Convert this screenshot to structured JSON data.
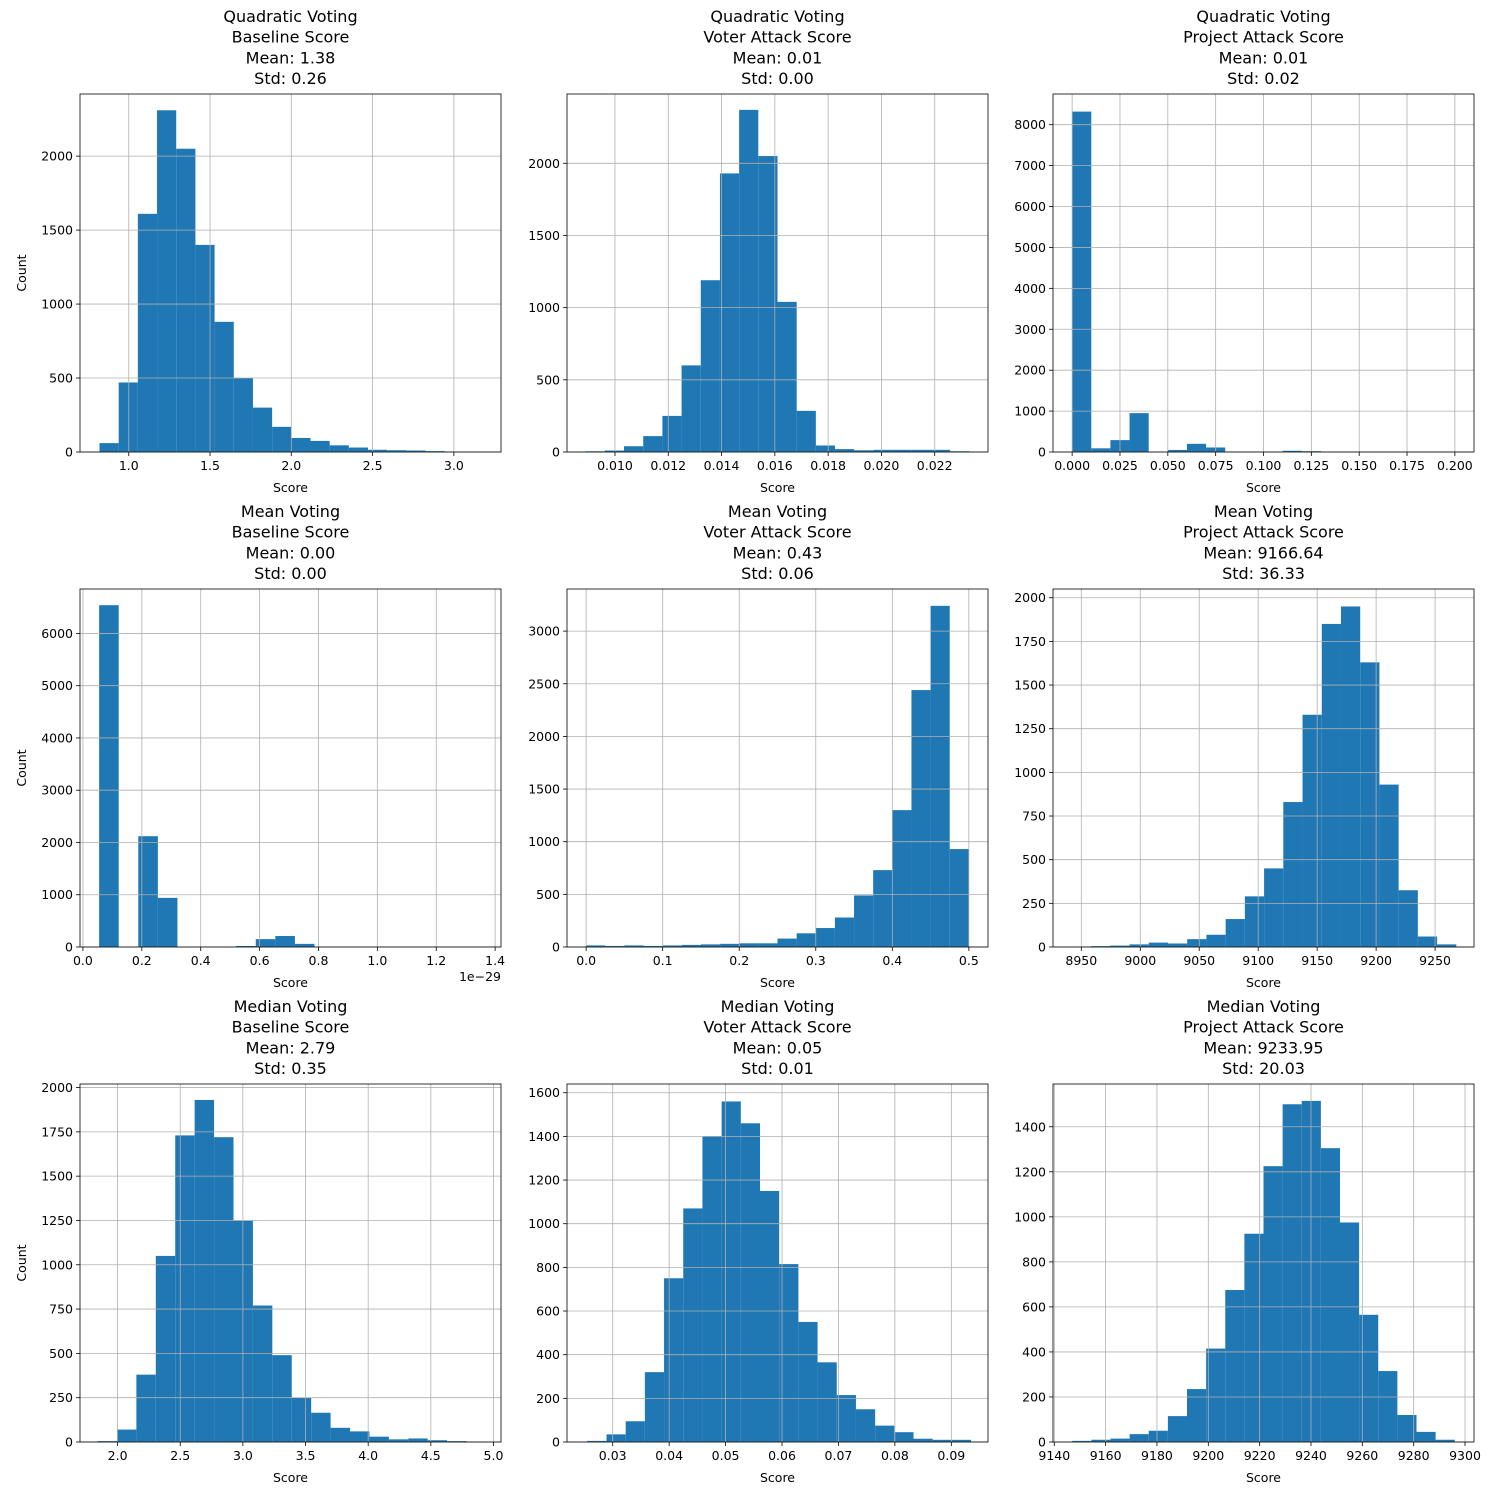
{
  "chart_data": [
    {
      "type": "bar",
      "title_lines": [
        "Quadratic Voting",
        "Baseline Score",
        "Mean: 1.38",
        "Std: 0.26"
      ],
      "xlabel": "Score",
      "ylabel": "Count",
      "xlim": [
        0.7,
        3.29
      ],
      "ylim": [
        0,
        2420
      ],
      "xticks": [
        1.0,
        1.5,
        2.0,
        2.5,
        3.0
      ],
      "xtick_labels": [
        "1.0",
        "1.5",
        "2.0",
        "2.5",
        "3.0"
      ],
      "yticks": [
        0,
        500,
        1000,
        1500,
        2000
      ],
      "ytick_labels": [
        "0",
        "500",
        "1000",
        "1500",
        "2000"
      ],
      "x_exponent_label": "",
      "bin_edges": [
        0.82,
        0.938,
        1.056,
        1.174,
        1.292,
        1.41,
        1.528,
        1.646,
        1.764,
        1.882,
        2.0,
        2.118,
        2.236,
        2.354,
        2.472,
        2.59,
        2.708,
        2.826,
        2.944,
        3.062,
        3.18
      ],
      "values": [
        60,
        470,
        1610,
        2310,
        2050,
        1400,
        880,
        500,
        300,
        170,
        95,
        75,
        45,
        30,
        15,
        12,
        10,
        6,
        3,
        2
      ]
    },
    {
      "type": "bar",
      "title_lines": [
        "Quadratic Voting",
        "Voter Attack Score",
        "Mean: 0.01",
        "Std: 0.00"
      ],
      "xlabel": "Score",
      "ylabel": "",
      "xlim": [
        0.0082,
        0.024
      ],
      "ylim": [
        0,
        2480
      ],
      "xticks": [
        0.01,
        0.012,
        0.014,
        0.016,
        0.018,
        0.02,
        0.022
      ],
      "xtick_labels": [
        "0.010",
        "0.012",
        "0.014",
        "0.016",
        "0.018",
        "0.020",
        "0.022"
      ],
      "yticks": [
        0,
        500,
        1000,
        1500,
        2000
      ],
      "ytick_labels": [
        "0",
        "500",
        "1000",
        "1500",
        "2000"
      ],
      "x_exponent_label": "",
      "bin_edges": [
        0.0089,
        0.00962,
        0.01034,
        0.01106,
        0.01178,
        0.0125,
        0.01322,
        0.01394,
        0.01466,
        0.01538,
        0.0161,
        0.01682,
        0.01754,
        0.01826,
        0.01898,
        0.0197,
        0.02042,
        0.02114,
        0.02186,
        0.02258,
        0.0233
      ],
      "values": [
        5,
        10,
        40,
        110,
        250,
        600,
        1190,
        1930,
        2370,
        2050,
        1040,
        285,
        45,
        20,
        12,
        15,
        15,
        15,
        15,
        5
      ]
    },
    {
      "type": "bar",
      "title_lines": [
        "Quadratic Voting",
        "Project Attack Score",
        "Mean: 0.01",
        "Std: 0.02"
      ],
      "xlabel": "Score",
      "ylabel": "",
      "xlim": [
        -0.01,
        0.21
      ],
      "ylim": [
        0,
        8750
      ],
      "xticks": [
        0.0,
        0.025,
        0.05,
        0.075,
        0.1,
        0.125,
        0.15,
        0.175,
        0.2
      ],
      "xtick_labels": [
        "0.000",
        "0.025",
        "0.050",
        "0.075",
        "0.100",
        "0.125",
        "0.150",
        "0.175",
        "0.200"
      ],
      "yticks": [
        0,
        1000,
        2000,
        3000,
        4000,
        5000,
        6000,
        7000,
        8000
      ],
      "ytick_labels": [
        "0",
        "1000",
        "2000",
        "3000",
        "4000",
        "5000",
        "6000",
        "7000",
        "8000"
      ],
      "x_exponent_label": "",
      "bin_edges": [
        0.0,
        0.01,
        0.02,
        0.03,
        0.04,
        0.05,
        0.06,
        0.07,
        0.08,
        0.09,
        0.1,
        0.11,
        0.12,
        0.13,
        0.14,
        0.15,
        0.16,
        0.17,
        0.18,
        0.19,
        0.2
      ],
      "values": [
        8320,
        90,
        290,
        950,
        0,
        50,
        200,
        110,
        10,
        5,
        5,
        30,
        20,
        5,
        5,
        5,
        3,
        3,
        2,
        2
      ]
    },
    {
      "type": "bar",
      "title_lines": [
        "Mean Voting",
        "Baseline Score",
        "Mean: 0.00",
        "Std: 0.00"
      ],
      "xlabel": "Score",
      "ylabel": "Count",
      "xlim": [
        -0.01,
        1.42
      ],
      "ylim": [
        0,
        6850
      ],
      "xticks": [
        0.0,
        0.2,
        0.4,
        0.6,
        0.8,
        1.0,
        1.2,
        1.4
      ],
      "xtick_labels": [
        "0.0",
        "0.2",
        "0.4",
        "0.6",
        "0.8",
        "1.0",
        "1.2",
        "1.4"
      ],
      "yticks": [
        0,
        1000,
        2000,
        3000,
        4000,
        5000,
        6000
      ],
      "ytick_labels": [
        "0",
        "1000",
        "2000",
        "3000",
        "4000",
        "5000",
        "6000"
      ],
      "x_exponent_label": "1e−29",
      "bin_edges": [
        0.055,
        0.1215,
        0.188,
        0.2545,
        0.321,
        0.3875,
        0.454,
        0.5205,
        0.587,
        0.6535,
        0.72,
        0.7865,
        0.853,
        0.9195,
        0.986,
        1.0525,
        1.119,
        1.1855,
        1.252,
        1.3185,
        1.385
      ],
      "values": [
        6540,
        0,
        2120,
        940,
        0,
        0,
        0,
        20,
        150,
        210,
        60,
        0,
        0,
        0,
        0,
        0,
        0,
        0,
        0,
        5
      ]
    },
    {
      "type": "bar",
      "title_lines": [
        "Mean Voting",
        "Voter Attack Score",
        "Mean: 0.43",
        "Std: 0.06"
      ],
      "xlabel": "Score",
      "ylabel": "",
      "xlim": [
        -0.025,
        0.525
      ],
      "ylim": [
        0,
        3400
      ],
      "xticks": [
        0.0,
        0.1,
        0.2,
        0.3,
        0.4,
        0.5
      ],
      "xtick_labels": [
        "0.0",
        "0.1",
        "0.2",
        "0.3",
        "0.4",
        "0.5"
      ],
      "yticks": [
        0,
        500,
        1000,
        1500,
        2000,
        2500,
        3000
      ],
      "ytick_labels": [
        "0",
        "500",
        "1000",
        "1500",
        "2000",
        "2500",
        "3000"
      ],
      "x_exponent_label": "",
      "bin_edges": [
        0.0,
        0.025,
        0.05,
        0.075,
        0.1,
        0.125,
        0.15,
        0.175,
        0.2,
        0.225,
        0.25,
        0.275,
        0.3,
        0.325,
        0.35,
        0.375,
        0.4,
        0.425,
        0.45,
        0.475,
        0.5
      ],
      "values": [
        15,
        10,
        15,
        10,
        15,
        20,
        25,
        30,
        35,
        35,
        80,
        130,
        180,
        280,
        490,
        730,
        1300,
        2440,
        3240,
        930
      ]
    },
    {
      "type": "bar",
      "title_lines": [
        "Mean Voting",
        "Project Attack Score",
        "Mean: 9166.64",
        "Std: 36.33"
      ],
      "xlabel": "Score",
      "ylabel": "",
      "xlim": [
        8926,
        9283
      ],
      "ylim": [
        0,
        2050
      ],
      "xticks": [
        8950,
        9000,
        9050,
        9100,
        9150,
        9200,
        9250
      ],
      "xtick_labels": [
        "8950",
        "9000",
        "9050",
        "9100",
        "9150",
        "9200",
        "9250"
      ],
      "yticks": [
        0,
        250,
        500,
        750,
        1000,
        1250,
        1500,
        1750,
        2000
      ],
      "ytick_labels": [
        "0",
        "250",
        "500",
        "750",
        "1000",
        "1250",
        "1500",
        "1750",
        "2000"
      ],
      "x_exponent_label": "",
      "bin_edges": [
        8942,
        8958.3,
        8974.6,
        8990.9,
        9007.2,
        9023.5,
        9039.8,
        9056.1,
        9072.4,
        9088.7,
        9105,
        9121.3,
        9137.6,
        9153.9,
        9170.2,
        9186.5,
        9202.8,
        9219.1,
        9235.4,
        9251.7,
        9268
      ],
      "values": [
        2,
        5,
        8,
        15,
        25,
        20,
        45,
        70,
        160,
        290,
        450,
        830,
        1330,
        1850,
        1950,
        1630,
        930,
        325,
        60,
        15
      ]
    },
    {
      "type": "bar",
      "title_lines": [
        "Median Voting",
        "Baseline Score",
        "Mean: 2.79",
        "Std: 0.35"
      ],
      "xlabel": "Score",
      "ylabel": "Count",
      "xlim": [
        1.7,
        5.06
      ],
      "ylim": [
        0,
        2020
      ],
      "xticks": [
        2.0,
        2.5,
        3.0,
        3.5,
        4.0,
        4.5,
        5.0
      ],
      "xtick_labels": [
        "2.0",
        "2.5",
        "3.0",
        "3.5",
        "4.0",
        "4.5",
        "5.0"
      ],
      "yticks": [
        0,
        250,
        500,
        750,
        1000,
        1250,
        1500,
        1750,
        2000
      ],
      "ytick_labels": [
        "0",
        "250",
        "500",
        "750",
        "1000",
        "1250",
        "1500",
        "1750",
        "2000"
      ],
      "x_exponent_label": "",
      "bin_edges": [
        1.84,
        1.995,
        2.15,
        2.305,
        2.46,
        2.615,
        2.77,
        2.925,
        3.08,
        3.235,
        3.39,
        3.545,
        3.7,
        3.855,
        4.01,
        4.165,
        4.32,
        4.475,
        4.63,
        4.785,
        4.94
      ],
      "values": [
        5,
        70,
        380,
        1050,
        1730,
        1930,
        1720,
        1250,
        770,
        490,
        250,
        165,
        80,
        60,
        30,
        15,
        20,
        10,
        5,
        2
      ]
    },
    {
      "type": "bar",
      "title_lines": [
        "Median Voting",
        "Voter Attack Score",
        "Mean: 0.05",
        "Std: 0.01"
      ],
      "xlabel": "Score",
      "ylabel": "",
      "xlim": [
        0.0219,
        0.0965
      ],
      "ylim": [
        0,
        1640
      ],
      "xticks": [
        0.03,
        0.04,
        0.05,
        0.06,
        0.07,
        0.08,
        0.09
      ],
      "xtick_labels": [
        "0.03",
        "0.04",
        "0.05",
        "0.06",
        "0.07",
        "0.08",
        "0.09"
      ],
      "yticks": [
        0,
        200,
        400,
        600,
        800,
        1000,
        1200,
        1400,
        1600
      ],
      "ytick_labels": [
        "0",
        "200",
        "400",
        "600",
        "800",
        "1000",
        "1200",
        "1400",
        "1600"
      ],
      "x_exponent_label": "",
      "bin_edges": [
        0.0255,
        0.0289,
        0.0323,
        0.0357,
        0.0391,
        0.0425,
        0.0459,
        0.0493,
        0.0527,
        0.0561,
        0.0595,
        0.0629,
        0.0663,
        0.0697,
        0.0731,
        0.0765,
        0.0799,
        0.0833,
        0.0867,
        0.0901,
        0.0935
      ],
      "values": [
        5,
        35,
        95,
        320,
        750,
        1070,
        1400,
        1560,
        1460,
        1150,
        815,
        550,
        365,
        215,
        150,
        75,
        45,
        15,
        10,
        10
      ]
    },
    {
      "type": "bar",
      "title_lines": [
        "Median Voting",
        "Project Attack Score",
        "Mean: 9233.95",
        "Std: 20.03"
      ],
      "xlabel": "Score",
      "ylabel": "",
      "xlim": [
        9139.5,
        9303.5
      ],
      "ylim": [
        0,
        1590
      ],
      "xticks": [
        9140,
        9160,
        9180,
        9200,
        9220,
        9240,
        9260,
        9280,
        9300
      ],
      "xtick_labels": [
        "9140",
        "9160",
        "9180",
        "9200",
        "9220",
        "9240",
        "9260",
        "9280",
        "9300"
      ],
      "yticks": [
        0,
        200,
        400,
        600,
        800,
        1000,
        1200,
        1400
      ],
      "ytick_labels": [
        "0",
        "200",
        "400",
        "600",
        "800",
        "1000",
        "1200",
        "1400"
      ],
      "x_exponent_label": "",
      "bin_edges": [
        9147,
        9154.45,
        9161.9,
        9169.35,
        9176.8,
        9184.25,
        9191.7,
        9199.15,
        9206.6,
        9214.05,
        9221.5,
        9228.95,
        9236.4,
        9243.85,
        9251.3,
        9258.75,
        9266.2,
        9273.65,
        9281.1,
        9288.55,
        9296
      ],
      "values": [
        5,
        10,
        15,
        35,
        50,
        115,
        235,
        415,
        675,
        925,
        1225,
        1500,
        1515,
        1305,
        975,
        565,
        315,
        120,
        45,
        10
      ]
    }
  ]
}
